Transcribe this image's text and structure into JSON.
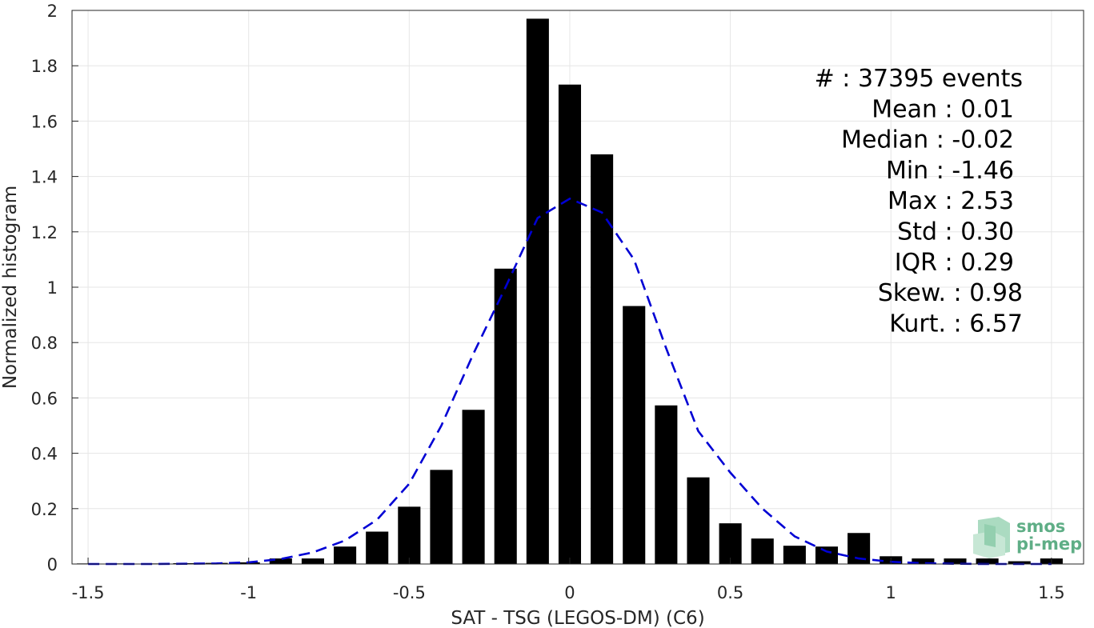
{
  "chart_data": {
    "type": "bar",
    "xlabel": "SAT - TSG (LEGOS-DM) (C6)",
    "ylabel": "Normalized histogram",
    "xlim": [
      -1.55,
      1.6
    ],
    "ylim": [
      0,
      2
    ],
    "xticks": [
      "-1.5",
      "-1",
      "-0.5",
      "0",
      "0.5",
      "1",
      "1.5"
    ],
    "yticks": [
      "0",
      "0.2",
      "0.4",
      "0.6",
      "0.8",
      "1",
      "1.2",
      "1.4",
      "1.6",
      "1.8",
      "2"
    ],
    "grid": true,
    "bar_width": 0.07,
    "x": [
      -1.5,
      -1.4,
      -1.3,
      -1.2,
      -1.1,
      -1.0,
      -0.9,
      -0.8,
      -0.7,
      -0.6,
      -0.5,
      -0.4,
      -0.3,
      -0.2,
      -0.1,
      0.0,
      0.1,
      0.2,
      0.3,
      0.4,
      0.5,
      0.6,
      0.7,
      0.8,
      0.9,
      1.0,
      1.1,
      1.2,
      1.3,
      1.4,
      1.5
    ],
    "values": [
      0.002,
      0.002,
      0.002,
      0.003,
      0.004,
      0.006,
      0.02,
      0.02,
      0.063,
      0.117,
      0.207,
      0.34,
      0.557,
      1.067,
      1.97,
      1.732,
      1.48,
      0.932,
      0.573,
      0.313,
      0.147,
      0.092,
      0.066,
      0.063,
      0.112,
      0.028,
      0.02,
      0.02,
      0.02,
      0.01,
      0.02
    ],
    "bar_color": "#000000",
    "fit_curve": {
      "style": "dashed",
      "color": "#0000d4",
      "x": [
        -1.5,
        -1.4,
        -1.3,
        -1.2,
        -1.1,
        -1.0,
        -0.9,
        -0.8,
        -0.7,
        -0.6,
        -0.5,
        -0.4,
        -0.3,
        -0.2,
        -0.1,
        0.0,
        0.1,
        0.2,
        0.3,
        0.4,
        0.5,
        0.6,
        0.7,
        0.8,
        0.9,
        1.0,
        1.1,
        1.2,
        1.3,
        1.4,
        1.5
      ],
      "y": [
        0.0,
        0.0,
        0.0,
        0.001,
        0.002,
        0.006,
        0.018,
        0.042,
        0.085,
        0.16,
        0.29,
        0.5,
        0.76,
        1.0,
        1.25,
        1.32,
        1.27,
        1.1,
        0.78,
        0.48,
        0.33,
        0.2,
        0.1,
        0.045,
        0.02,
        0.008,
        0.003,
        0.001,
        0.0,
        0.0,
        0.0
      ]
    },
    "annotations": [
      "#  : 37395 events",
      "Mean : 0.01",
      "Median : -0.02",
      "Min : -1.46",
      "Max : 2.53",
      "Std : 0.30",
      "IQR : 0.29",
      "Skew. : 0.98",
      "Kurt. : 6.57"
    ]
  },
  "logo": {
    "line1": "smos",
    "line2": "pi-mep",
    "color": "#5fae86"
  }
}
